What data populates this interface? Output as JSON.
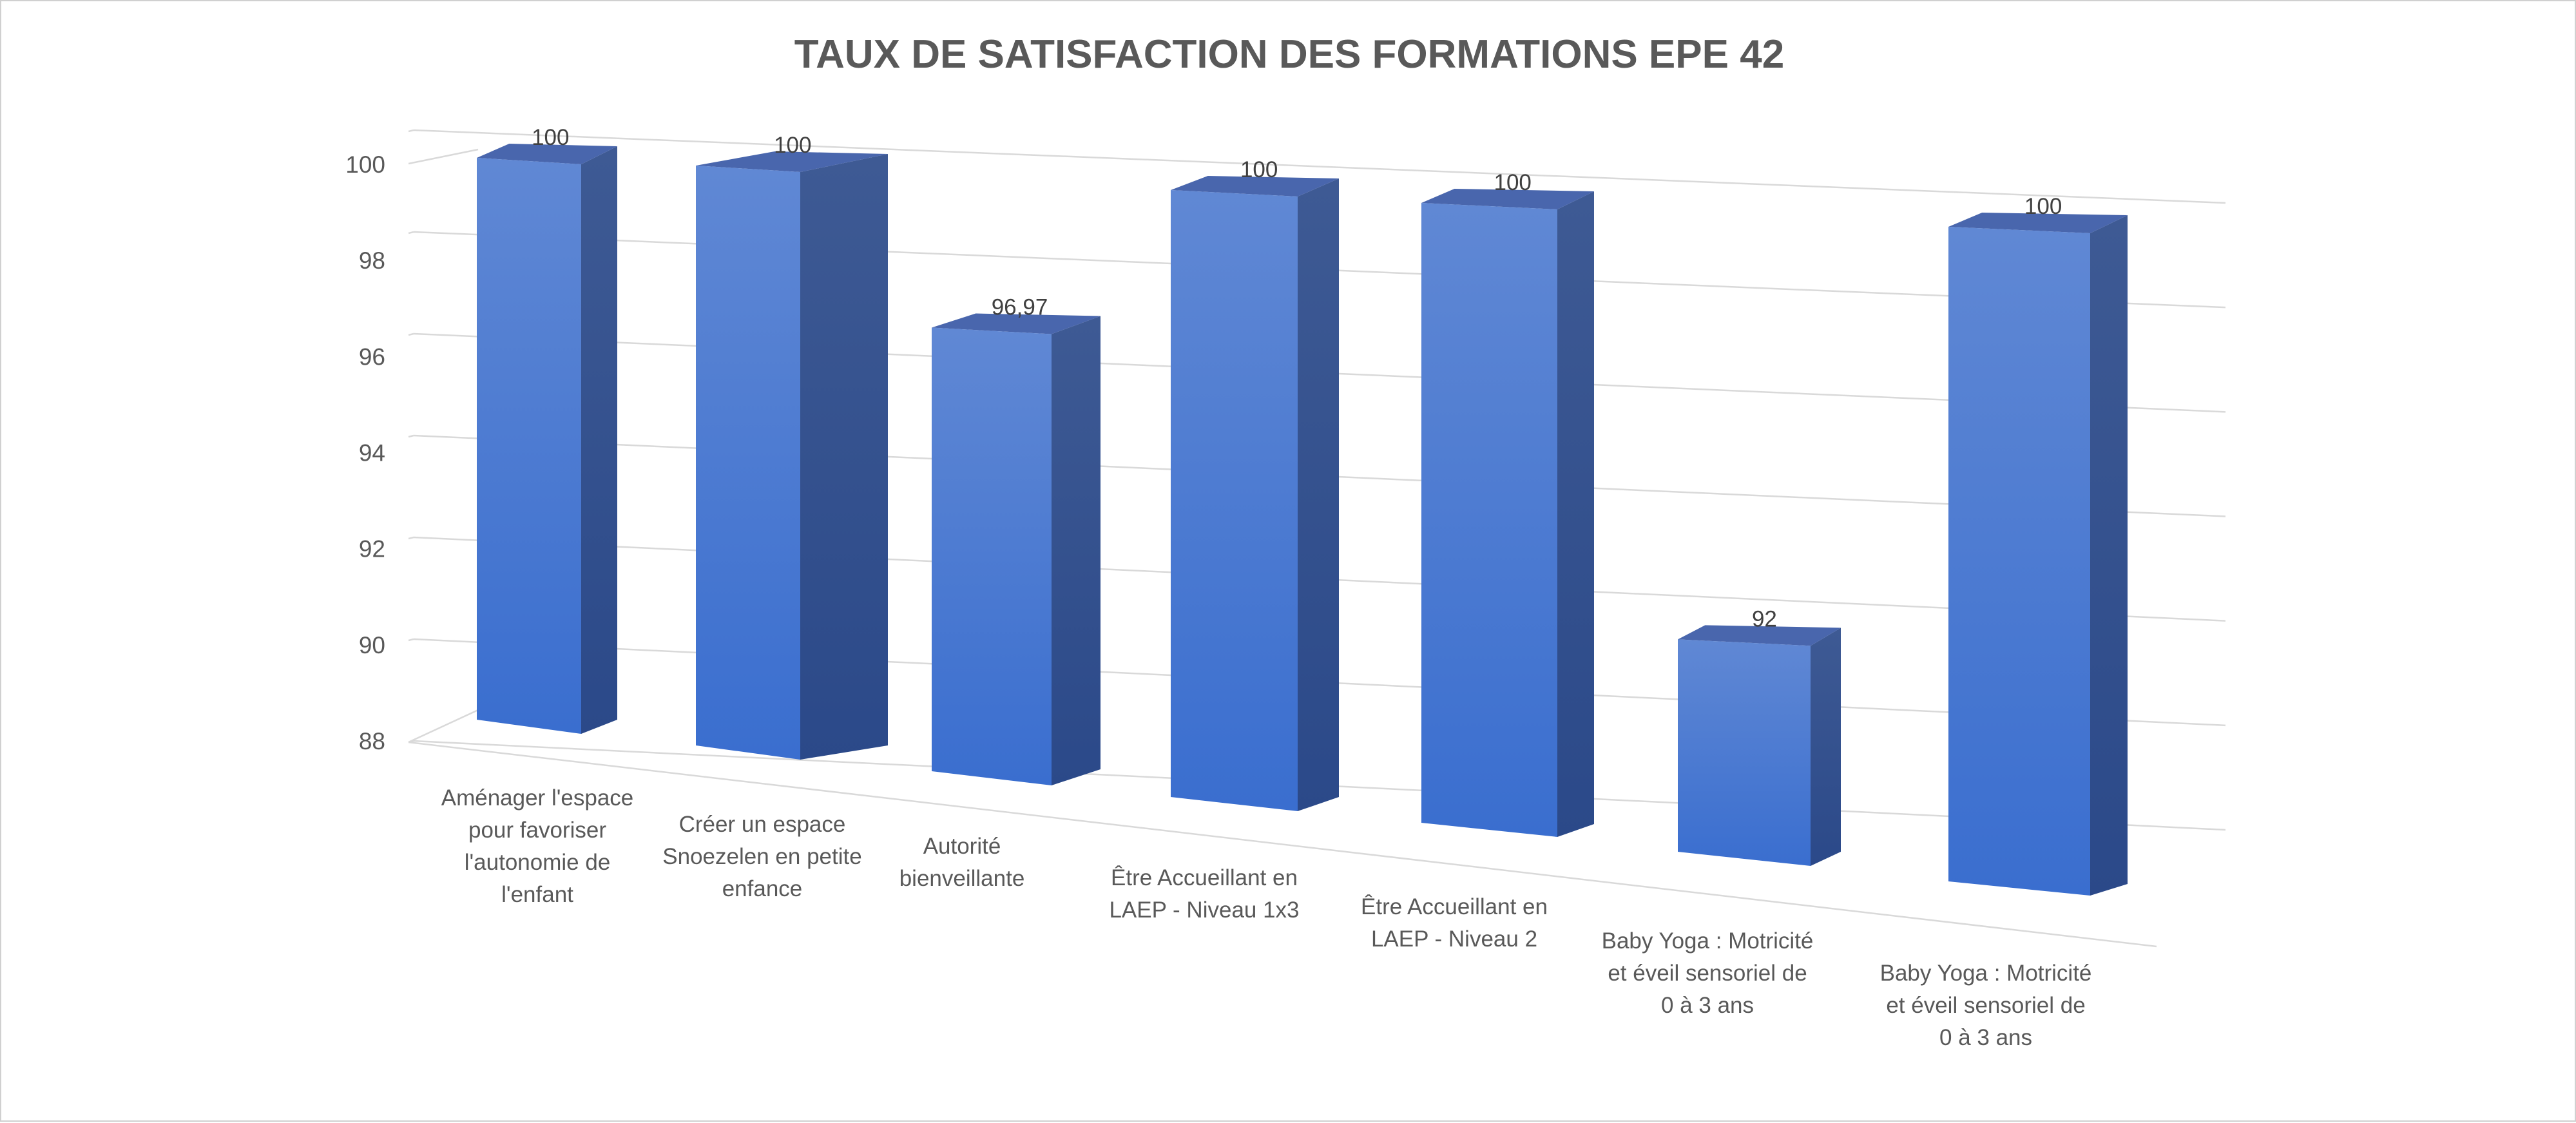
{
  "colors": {
    "bar_front_top": "#6088d4",
    "bar_front_bottom": "#3a6ecf",
    "bar_side_top": "#3e5a94",
    "bar_side_bottom": "#2b4989",
    "bar_top": "#4966ad",
    "gridline": "#d9d9d9",
    "text": "#595959",
    "title": "#595959"
  },
  "chart_data": {
    "type": "bar",
    "title": "TAUX DE SATISFACTION DES FORMATIONS EPE 42",
    "xlabel": "",
    "ylabel": "",
    "ylim": [
      88,
      100
    ],
    "yticks": [
      100,
      98,
      96,
      94,
      92,
      90,
      88
    ],
    "grid": true,
    "legend": "none",
    "categories": [
      "Aménager l'espace pour favoriser l'autonomie de l'enfant",
      "Créer un espace Snoezelen en petite enfance",
      "Autorité bienveillante",
      "Être Accueillant en LAEP - Niveau 1x3",
      "Être Accueillant en LAEP - Niveau 2",
      "Baby Yoga : Motricité et éveil sensoriel de 0 à 3 ans",
      "Baby Yoga : Motricité et éveil sensoriel de 0 à 3 ans"
    ],
    "category_lines": [
      [
        "Aménager l'espace",
        "pour favoriser",
        "l'autonomie de",
        "l'enfant"
      ],
      [
        "Créer un espace",
        "Snoezelen en petite",
        "enfance"
      ],
      [
        "Autorité",
        "bienveillante"
      ],
      [
        "Être Accueillant en",
        "LAEP - Niveau 1x3"
      ],
      [
        "Être Accueillant en",
        "LAEP - Niveau 2"
      ],
      [
        "Baby Yoga : Motricité",
        "et éveil sensoriel de",
        "0 à 3 ans"
      ],
      [
        "Baby Yoga : Motricité",
        "et éveil sensoriel de",
        "0 à 3 ans"
      ]
    ],
    "values": [
      100,
      100,
      96.97,
      100,
      100,
      92,
      100
    ],
    "data_labels": [
      "100",
      "100",
      "96,97",
      "100",
      "100",
      "92",
      "100"
    ]
  }
}
